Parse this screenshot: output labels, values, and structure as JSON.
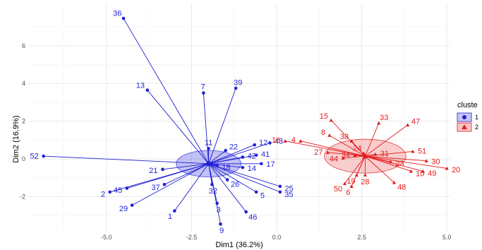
{
  "chart_data": {
    "type": "scatter",
    "xlabel": "Dim1 (36.2%)",
    "ylabel": "Dim2 (16.9%)",
    "xlim": [
      -7.3,
      5.1
    ],
    "ylim": [
      -3.85,
      8.2
    ],
    "x_ticks": [
      -5.0,
      -2.5,
      0.0,
      2.5,
      5.0
    ],
    "x_tick_labels": [
      "-5.0",
      "-2.5",
      "0.0",
      "2.5",
      "5.0"
    ],
    "y_ticks": [
      -2,
      0,
      2,
      4,
      6
    ],
    "y_tick_labels": [
      "-2",
      "0",
      "2",
      "4",
      "6"
    ],
    "grid": true,
    "legend_position": "right",
    "legend_title": "cluste",
    "series": [
      {
        "name": "1",
        "color": "#1f1fd6",
        "marker": "circle",
        "centroid": {
          "x": -2.0,
          "y": -0.25
        },
        "ellipse": {
          "rx": 0.95,
          "ry": 0.7
        },
        "points": [
          {
            "label": "1",
            "x": -3.0,
            "y": -2.75
          },
          {
            "label": "2",
            "x": -4.9,
            "y": -1.75
          },
          {
            "label": "3",
            "x": -1.75,
            "y": -2.35
          },
          {
            "label": "5",
            "x": -0.6,
            "y": -1.75
          },
          {
            "label": "7",
            "x": -2.15,
            "y": 3.5
          },
          {
            "label": "9",
            "x": -1.65,
            "y": -3.45
          },
          {
            "label": "11",
            "x": -2.0,
            "y": 0.55
          },
          {
            "label": "12",
            "x": -0.65,
            "y": 0.75
          },
          {
            "label": "13",
            "x": -3.8,
            "y": 3.65
          },
          {
            "label": "14",
            "x": -1.0,
            "y": -0.45
          },
          {
            "label": "17",
            "x": -0.45,
            "y": -0.25
          },
          {
            "label": "18",
            "x": -1.75,
            "y": -0.35
          },
          {
            "label": "21",
            "x": -3.35,
            "y": -0.55
          },
          {
            "label": "22",
            "x": -1.5,
            "y": 0.45
          },
          {
            "label": "25",
            "x": 0.1,
            "y": -1.45
          },
          {
            "label": "26",
            "x": -1.45,
            "y": -1.1
          },
          {
            "label": "29",
            "x": -4.25,
            "y": -2.45
          },
          {
            "label": "32",
            "x": -1.9,
            "y": -1.35
          },
          {
            "label": "35",
            "x": 0.1,
            "y": -1.75
          },
          {
            "label": "36",
            "x": -4.5,
            "y": 7.45
          },
          {
            "label": "37",
            "x": -3.3,
            "y": -1.35
          },
          {
            "label": "39",
            "x": -1.2,
            "y": 3.75
          },
          {
            "label": "41",
            "x": -0.6,
            "y": 0.2
          },
          {
            "label": "42",
            "x": -1.0,
            "y": 0.1
          },
          {
            "label": "43",
            "x": -0.2,
            "y": 0.85
          },
          {
            "label": "45",
            "x": -4.4,
            "y": -1.55
          },
          {
            "label": "46",
            "x": -0.9,
            "y": -2.8
          },
          {
            "label": "52",
            "x": -6.85,
            "y": 0.15
          }
        ]
      },
      {
        "name": "2",
        "color": "#e41a1c",
        "marker": "triangle",
        "centroid": {
          "x": 2.6,
          "y": 0.15
        },
        "ellipse": {
          "rx": 1.2,
          "ry": 0.9
        },
        "points": [
          {
            "label": "4",
            "x": 0.7,
            "y": 0.95
          },
          {
            "label": "6",
            "x": 2.2,
            "y": -1.45
          },
          {
            "label": "8",
            "x": 1.55,
            "y": 1.25
          },
          {
            "label": "10",
            "x": 3.95,
            "y": -0.65
          },
          {
            "label": "15",
            "x": 1.6,
            "y": 2.05
          },
          {
            "label": "16",
            "x": 0.25,
            "y": 0.95
          },
          {
            "label": "19",
            "x": 2.35,
            "y": -0.85
          },
          {
            "label": "20",
            "x": 5.0,
            "y": -0.5
          },
          {
            "label": "23",
            "x": 3.35,
            "y": -0.15
          },
          {
            "label": "24",
            "x": 2.55,
            "y": 0.3
          },
          {
            "label": "27",
            "x": 1.5,
            "y": 0.35
          },
          {
            "label": "28",
            "x": 2.6,
            "y": -0.85
          },
          {
            "label": "30",
            "x": 4.4,
            "y": -0.1
          },
          {
            "label": "31",
            "x": 2.9,
            "y": 0.25
          },
          {
            "label": "33",
            "x": 3.0,
            "y": 1.9
          },
          {
            "label": "34",
            "x": 2.3,
            "y": 0.2
          },
          {
            "label": "38",
            "x": 2.2,
            "y": 0.95
          },
          {
            "label": "44",
            "x": 1.95,
            "y": 0.05
          },
          {
            "label": "47",
            "x": 3.85,
            "y": 1.8
          },
          {
            "label": "48",
            "x": 3.45,
            "y": -1.25
          },
          {
            "label": "49",
            "x": 4.3,
            "y": -0.65
          },
          {
            "label": "50",
            "x": 2.0,
            "y": -1.3
          },
          {
            "label": "51",
            "x": 4.0,
            "y": 0.4
          }
        ]
      }
    ]
  }
}
